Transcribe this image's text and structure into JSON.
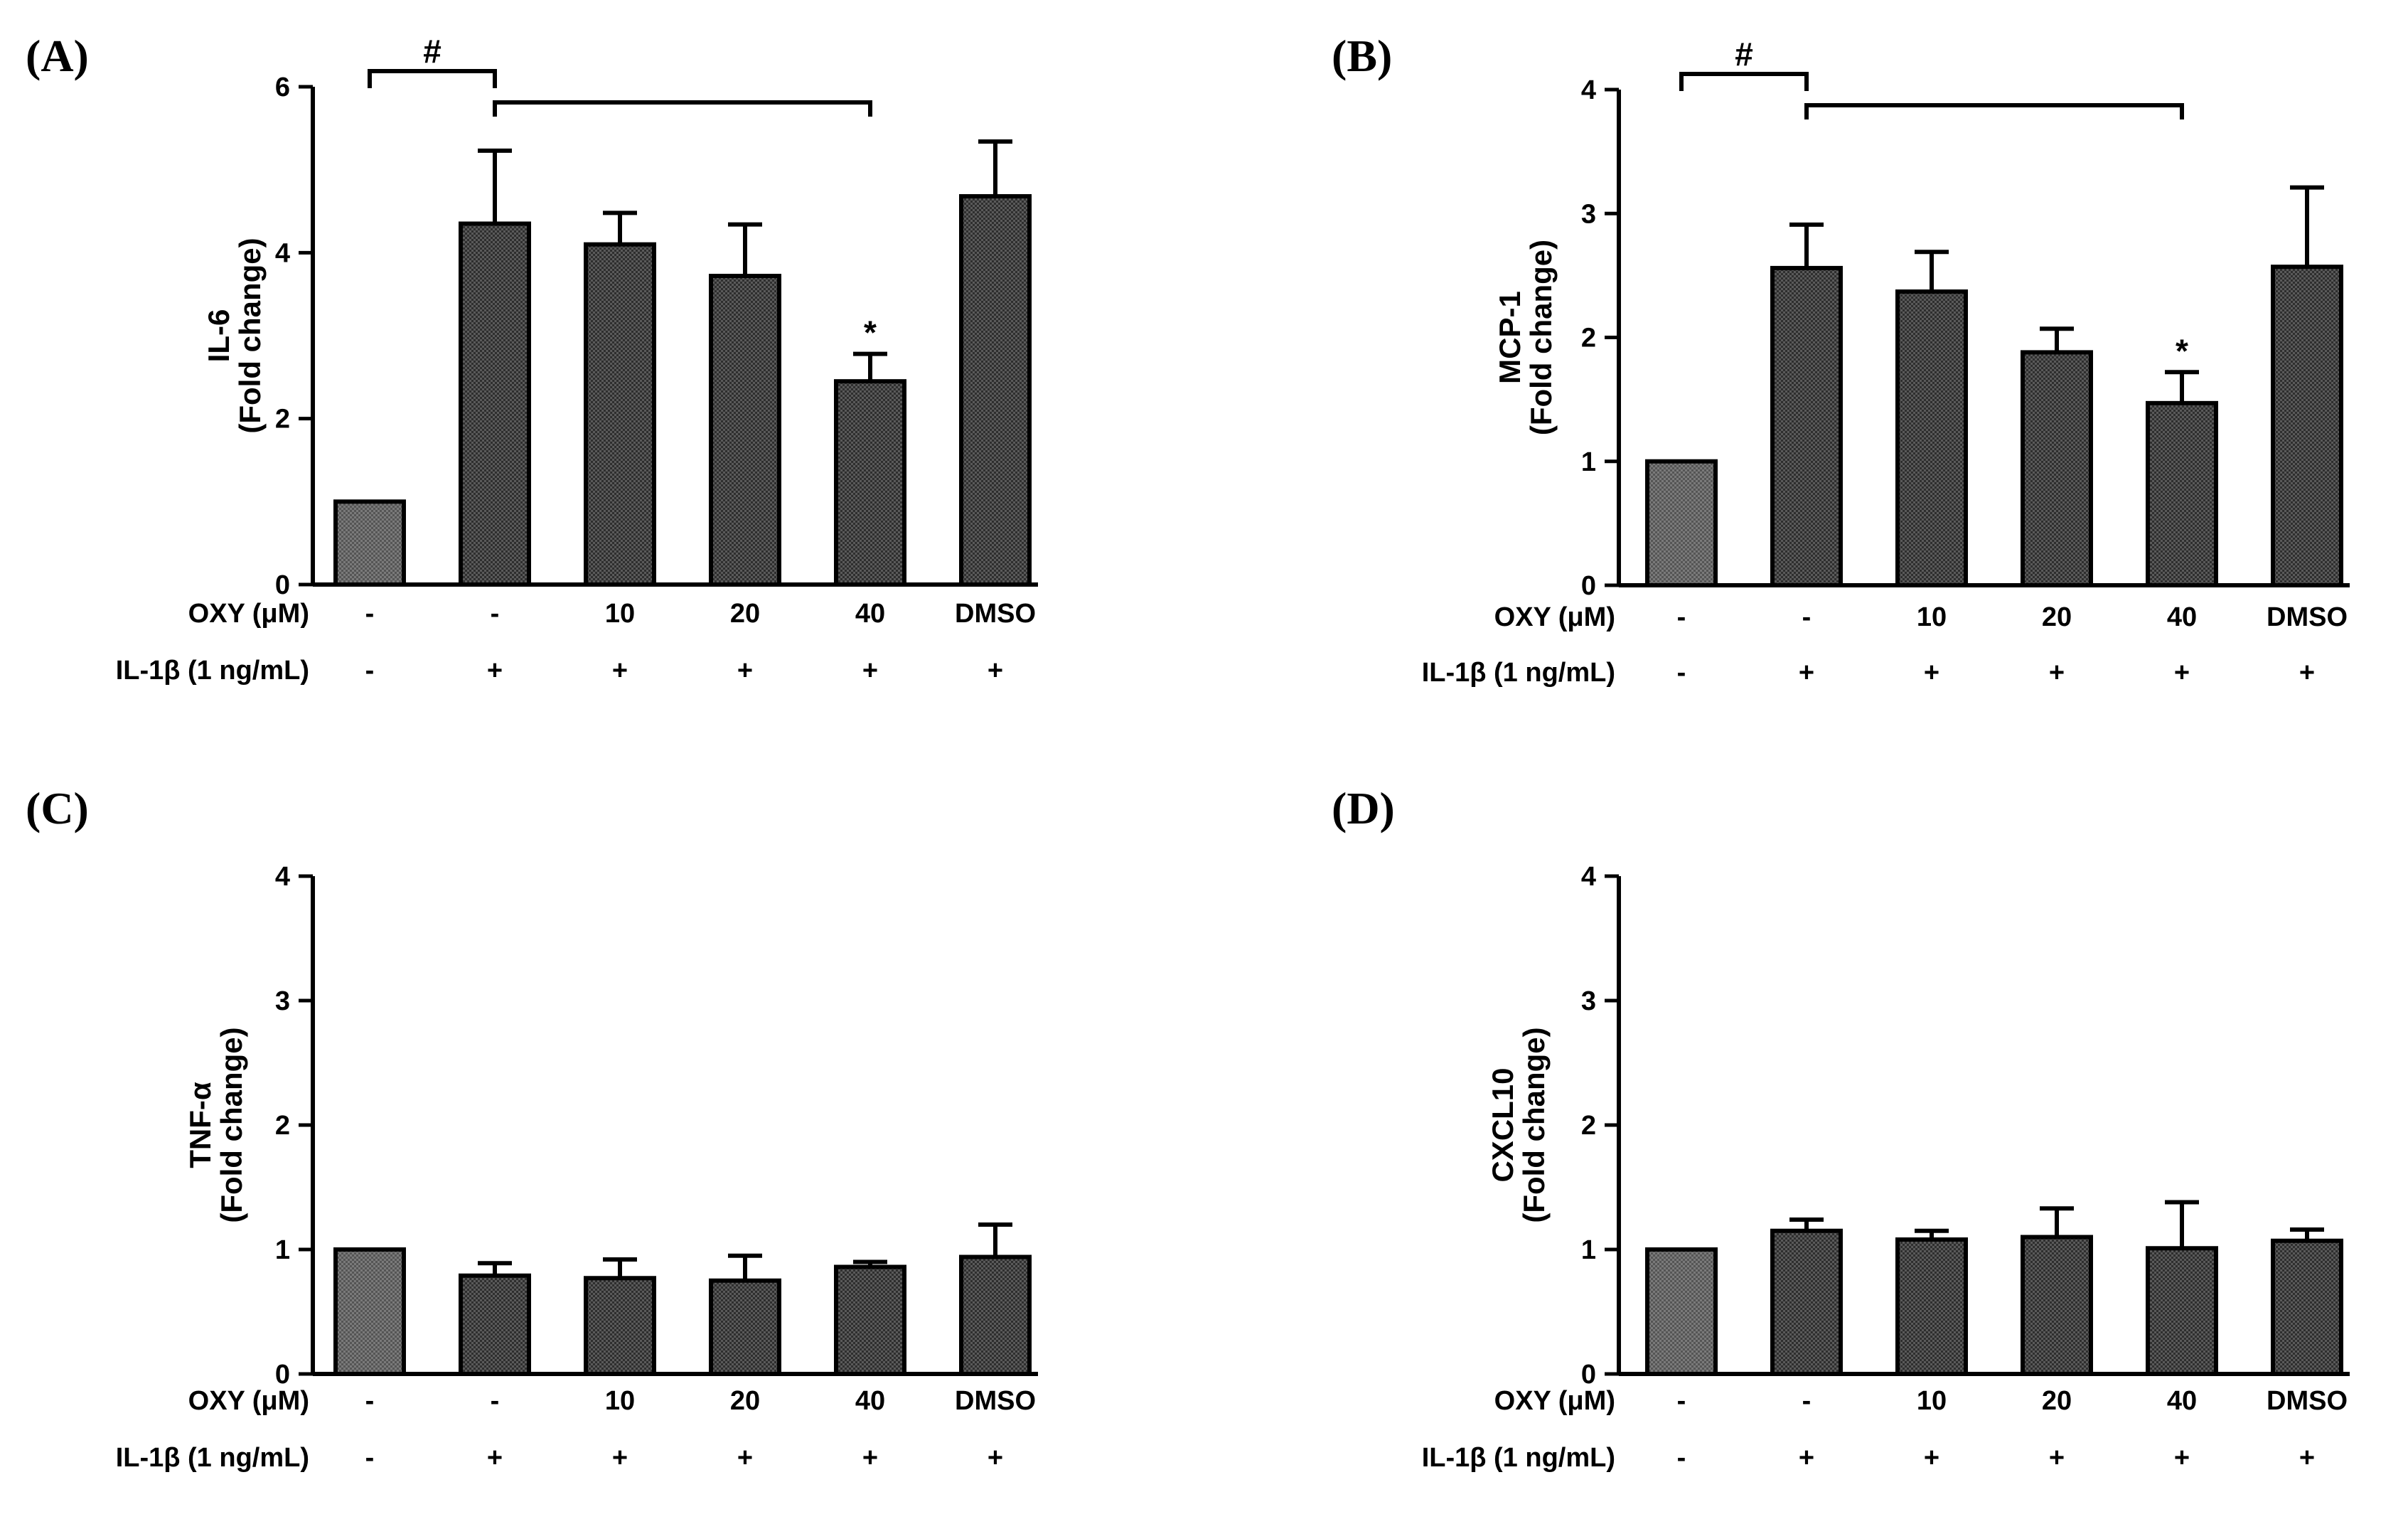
{
  "figure": {
    "row_labels": {
      "oxy": "OXY (μM)",
      "il1b": "IL-1β (1 ng/mL)"
    },
    "oxy_values": [
      "-",
      "-",
      "10",
      "20",
      "40",
      "DMSO"
    ],
    "il1b_values": [
      "-",
      "+",
      "+",
      "+",
      "+",
      "+"
    ]
  },
  "chart_data": [
    {
      "panel": "(A)",
      "type": "bar",
      "title": "",
      "ylabel_line1": "IL-6",
      "ylabel_line2": "(Fold change)",
      "xlabel": "",
      "ylim": [
        0,
        6
      ],
      "yticks": [
        0,
        2,
        4,
        6
      ],
      "categories": [
        "-/-",
        "-/+",
        "10/+",
        "20/+",
        "40/+",
        "DMSO/+"
      ],
      "values": [
        1.0,
        4.35,
        4.1,
        3.72,
        2.45,
        4.68
      ],
      "errors": [
        0,
        0.88,
        0.38,
        0.62,
        0.33,
        0.66
      ],
      "star_index": 4,
      "star_label": "*",
      "hash_label": "#",
      "show_brackets": true
    },
    {
      "panel": "(B)",
      "type": "bar",
      "title": "",
      "ylabel_line1": "MCP-1",
      "ylabel_line2": "(Fold change)",
      "xlabel": "",
      "ylim": [
        0,
        4
      ],
      "yticks": [
        0,
        1,
        2,
        3,
        4
      ],
      "categories": [
        "-/-",
        "-/+",
        "10/+",
        "20/+",
        "40/+",
        "DMSO/+"
      ],
      "values": [
        1.0,
        2.56,
        2.37,
        1.88,
        1.47,
        2.57
      ],
      "errors": [
        0,
        0.35,
        0.32,
        0.19,
        0.25,
        0.64
      ],
      "star_index": 4,
      "star_label": "*",
      "hash_label": "#",
      "show_brackets": true
    },
    {
      "panel": "(C)",
      "type": "bar",
      "title": "",
      "ylabel_line1": "TNF-α",
      "ylabel_line2": "(Fold change)",
      "xlabel": "",
      "ylim": [
        0,
        4
      ],
      "yticks": [
        0,
        1,
        2,
        3,
        4
      ],
      "categories": [
        "-/-",
        "-/+",
        "10/+",
        "20/+",
        "40/+",
        "DMSO/+"
      ],
      "values": [
        1.0,
        0.79,
        0.77,
        0.75,
        0.86,
        0.94
      ],
      "errors": [
        0,
        0.1,
        0.15,
        0.2,
        0.04,
        0.26
      ],
      "star_index": -1,
      "show_brackets": false
    },
    {
      "panel": "(D)",
      "type": "bar",
      "title": "",
      "ylabel_line1": "CXCL10",
      "ylabel_line2": "(Fold change)",
      "xlabel": "",
      "ylim": [
        0,
        4
      ],
      "yticks": [
        0,
        1,
        2,
        3,
        4
      ],
      "categories": [
        "-/-",
        "-/+",
        "10/+",
        "20/+",
        "40/+",
        "DMSO/+"
      ],
      "values": [
        1.0,
        1.15,
        1.08,
        1.1,
        1.01,
        1.07
      ],
      "errors": [
        0,
        0.09,
        0.07,
        0.23,
        0.37,
        0.09
      ],
      "star_index": -1,
      "show_brackets": false
    }
  ]
}
